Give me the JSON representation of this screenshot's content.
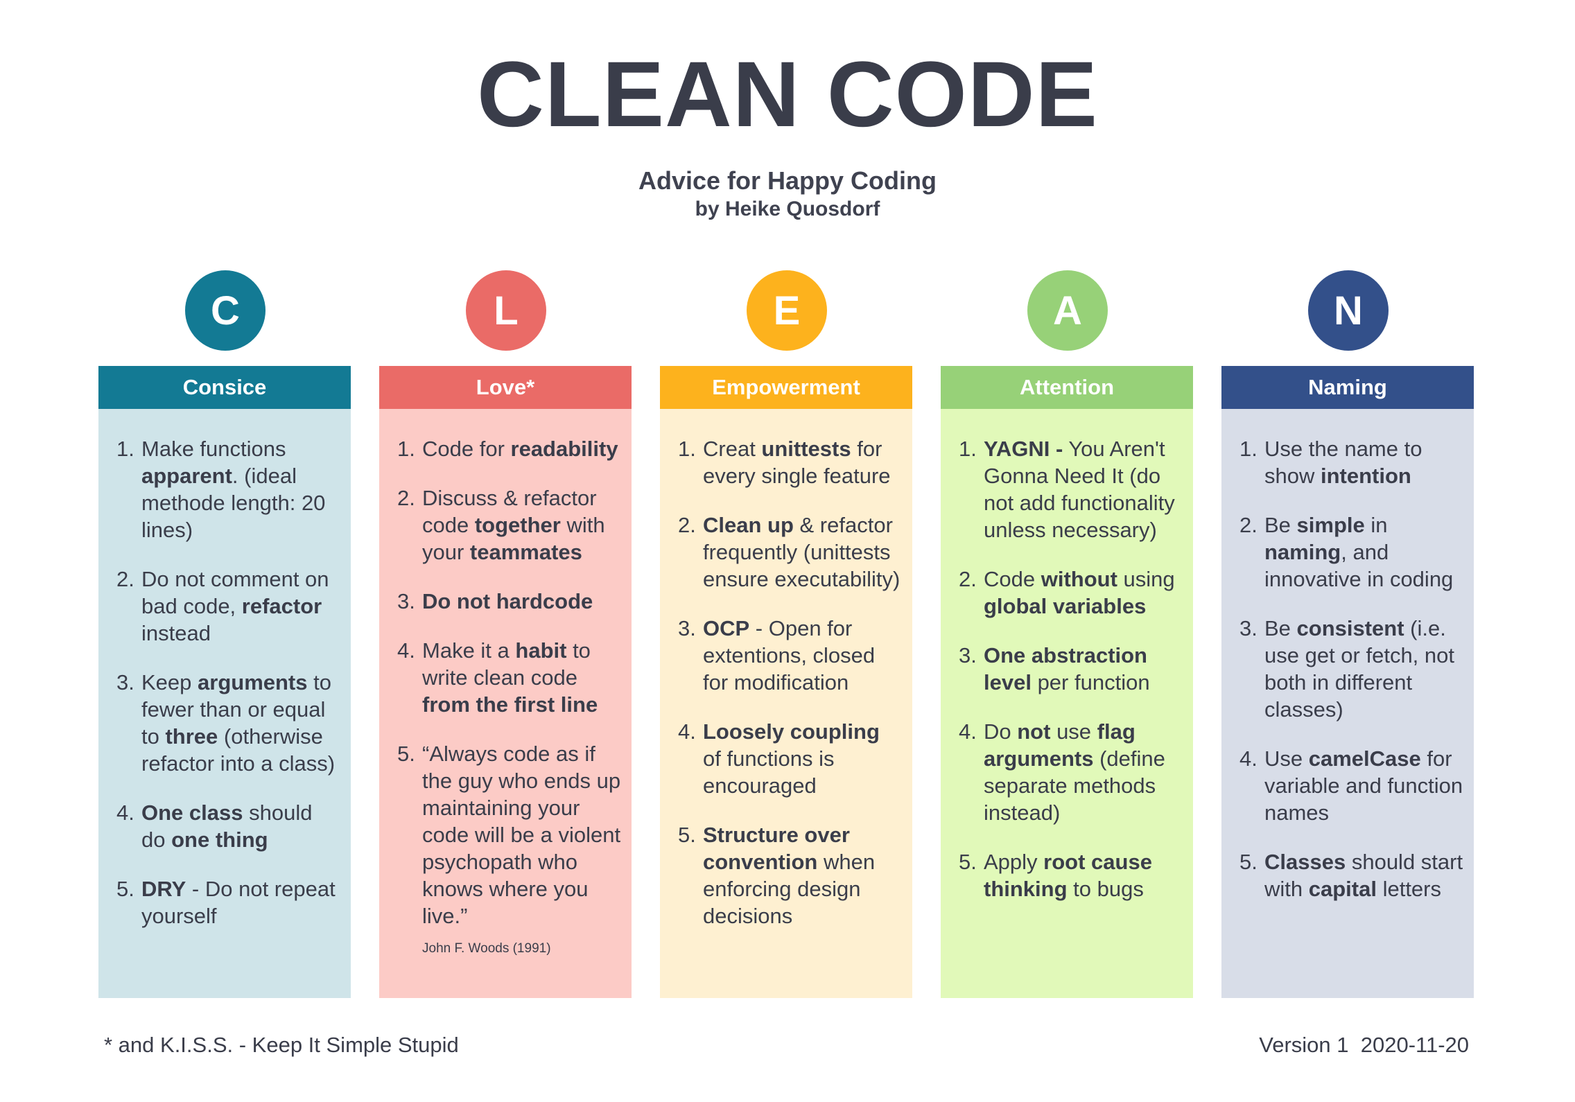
{
  "title": "CLEAN CODE",
  "subtitle": "Advice for Happy Coding",
  "author": "by Heike Quosdorf",
  "columns": [
    {
      "letter": "C",
      "heading": "Consice",
      "color": "#137a94",
      "bg": "#cfe4e9",
      "items": [
        {
          "num": "1.",
          "parts": [
            {
              "t": "Make functions "
            },
            {
              "t": "apparent",
              "b": true
            },
            {
              "t": ". (ideal methode length: 20 lines)"
            }
          ]
        },
        {
          "num": "2.",
          "parts": [
            {
              "t": "Do not comment on bad code, "
            },
            {
              "t": "refactor",
              "b": true
            },
            {
              "t": " instead"
            }
          ]
        },
        {
          "num": "3.",
          "parts": [
            {
              "t": "Keep "
            },
            {
              "t": "arguments",
              "b": true
            },
            {
              "t": " to fewer than or equal to "
            },
            {
              "t": "three",
              "b": true
            },
            {
              "t": " (otherwise refactor into a class)"
            }
          ]
        },
        {
          "num": "4.",
          "parts": [
            {
              "t": "One class",
              "b": true
            },
            {
              "t": " should do "
            },
            {
              "t": "one thing",
              "b": true
            }
          ]
        },
        {
          "num": "5.",
          "parts": [
            {
              "t": "DRY",
              "b": true
            },
            {
              "t": " - Do not repeat yourself"
            }
          ]
        }
      ]
    },
    {
      "letter": "L",
      "heading": "Love*",
      "color": "#ea6b67",
      "bg": "#fccbc6",
      "items": [
        {
          "num": "1.",
          "parts": [
            {
              "t": "Code for "
            },
            {
              "t": "readability",
              "b": true
            }
          ]
        },
        {
          "num": "2.",
          "parts": [
            {
              "t": "Discuss & refactor code "
            },
            {
              "t": "together",
              "b": true
            },
            {
              "t": " with your "
            },
            {
              "t": "teammates",
              "b": true
            }
          ]
        },
        {
          "num": "3.",
          "parts": [
            {
              "t": "Do not hardcode",
              "b": true
            }
          ]
        },
        {
          "num": "4.",
          "parts": [
            {
              "t": "Make it a "
            },
            {
              "t": "habit",
              "b": true
            },
            {
              "t": " to write clean code "
            },
            {
              "t": "from the first line",
              "b": true
            }
          ]
        },
        {
          "num": "5.",
          "parts": [
            {
              "t": "“Always code as if the guy who ends up maintaining your code will be a violent psychopath who knows where you live.”"
            }
          ],
          "cite": "John F. Woods (1991)"
        }
      ]
    },
    {
      "letter": "E",
      "heading": "Empowerment",
      "color": "#fdb21d",
      "bg": "#fef0d1",
      "items": [
        {
          "num": "1.",
          "parts": [
            {
              "t": "Creat "
            },
            {
              "t": "unittests",
              "b": true
            },
            {
              "t": " for every single feature"
            }
          ]
        },
        {
          "num": "2.",
          "parts": [
            {
              "t": "Clean up",
              "b": true
            },
            {
              "t": " & refactor frequently (unittests ensure executability)"
            }
          ]
        },
        {
          "num": "3.",
          "parts": [
            {
              "t": "OCP",
              "b": true
            },
            {
              "t": " - Open for extentions, closed for modification"
            }
          ]
        },
        {
          "num": "4.",
          "parts": [
            {
              "t": "Loosely coupling",
              "b": true
            },
            {
              "t": " of functions is encouraged"
            }
          ]
        },
        {
          "num": "5.",
          "parts": [
            {
              "t": "Structure over convention",
              "b": true
            },
            {
              "t": " when enforcing design decisions"
            }
          ]
        }
      ]
    },
    {
      "letter": "A",
      "heading": "Attention",
      "color": "#97d178",
      "bg": "#e1f9b9",
      "items": [
        {
          "num": "1.",
          "parts": [
            {
              "t": "YAGNI -",
              "b": true
            },
            {
              "t": " You Aren't Gonna Need It (do not add functionality unless necessary)"
            }
          ]
        },
        {
          "num": "2.",
          "parts": [
            {
              "t": "Code "
            },
            {
              "t": "without",
              "b": true
            },
            {
              "t": " using "
            },
            {
              "t": "global variables",
              "b": true
            }
          ]
        },
        {
          "num": "3.",
          "parts": [
            {
              "t": "One abstraction level",
              "b": true
            },
            {
              "t": " per function"
            }
          ]
        },
        {
          "num": "4.",
          "parts": [
            {
              "t": "Do "
            },
            {
              "t": "not",
              "b": true
            },
            {
              "t": " use "
            },
            {
              "t": "flag arguments",
              "b": true
            },
            {
              "t": " (define separate methods instead)"
            }
          ]
        },
        {
          "num": "5.",
          "parts": [
            {
              "t": "Apply "
            },
            {
              "t": "root cause thinking",
              "b": true
            },
            {
              "t": " to bugs"
            }
          ]
        }
      ]
    },
    {
      "letter": "N",
      "heading": "Naming",
      "color": "#33508a",
      "bg": "#d8dde8",
      "items": [
        {
          "num": "1.",
          "parts": [
            {
              "t": "Use the name to show "
            },
            {
              "t": "intention",
              "b": true
            }
          ]
        },
        {
          "num": "2.",
          "parts": [
            {
              "t": "Be "
            },
            {
              "t": "simple",
              "b": true
            },
            {
              "t": " in "
            },
            {
              "t": "naming",
              "b": true
            },
            {
              "t": ", and innovative in coding"
            }
          ]
        },
        {
          "num": "3.",
          "parts": [
            {
              "t": "Be "
            },
            {
              "t": "consistent",
              "b": true
            },
            {
              "t": " (i.e. use get or fetch, not both in different classes)"
            }
          ]
        },
        {
          "num": "4.",
          "parts": [
            {
              "t": "Use "
            },
            {
              "t": "camelCase",
              "b": true
            },
            {
              "t": " for variable and function names"
            }
          ]
        },
        {
          "num": "5.",
          "parts": [
            {
              "t": "Classes",
              "b": true
            },
            {
              "t": " should start with "
            },
            {
              "t": "capital",
              "b": true
            },
            {
              "t": " letters"
            }
          ]
        }
      ]
    }
  ],
  "footnote": "* and K.I.S.S. - Keep It Simple Stupid",
  "version": "Version 1  2020-11-20"
}
